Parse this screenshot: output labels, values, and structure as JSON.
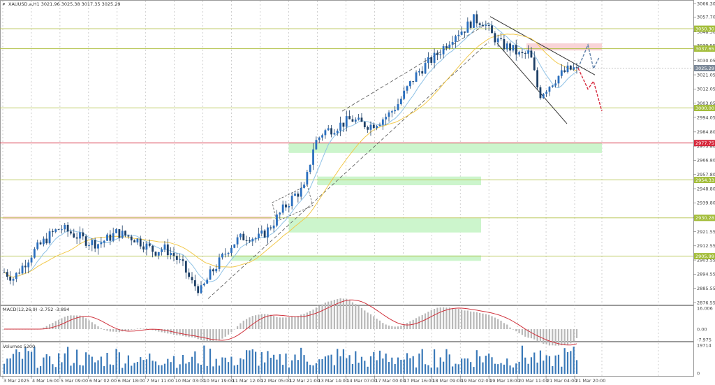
{
  "header": {
    "symbol_line": "XAUUSD.a,H1  3021.96 3025.38 3017.35 3025.29"
  },
  "colors": {
    "bull_candle": "#2a6fbf",
    "bear_candle": "#1d3f66",
    "level_line": "#b3c24a",
    "level_badge": "#a3bd3a",
    "red_level": "#d6273b",
    "support_zone": "#ccf5cc",
    "resistance_zone": "#f9d4d7",
    "ma_fast": "#8fc2e6",
    "ma_slow": "#f2c94c",
    "macd_signal": "#d0323c",
    "macd_hist": "#b8b8b8",
    "volume": "#3a79b8",
    "proj_up": "#5c7fa8",
    "proj_down": "#d6273b",
    "grid": "#b0b0b0"
  },
  "indicators": {
    "macd": {
      "label": "MACD(12,26,9) -2.752 -3.894",
      "ticks": [
        "16.006",
        "0.00",
        "-7.975"
      ]
    },
    "volume": {
      "label": "Volumes 5200",
      "ticks": [
        "19714",
        "0"
      ]
    }
  },
  "chart_data": {
    "type": "candlestick",
    "symbol": "XAUUSD.a",
    "timeframe": "H1",
    "y_range": [
      2876.55,
      3066.3
    ],
    "y_ticks": [
      "3066.30",
      "3057.70",
      "3048.30",
      "3039.55",
      "3030.05",
      "3021.05",
      "3012.05",
      "3003.05",
      "2994.05",
      "2984.80",
      "2975.80",
      "2966.80",
      "2957.80",
      "2948.80",
      "2939.80",
      "2930.55",
      "2921.55",
      "2912.55",
      "2903.55",
      "2894.55",
      "2885.55",
      "2876.55"
    ],
    "x_labels": [
      "3 Mar 2025",
      "4 Mar 16:00",
      "5 Mar 09:00",
      "6 Mar 02:00",
      "6 Mar 18:00",
      "7 Mar 11:00",
      "10 Mar 03:00",
      "10 Mar 19:00",
      "11 Mar 12:00",
      "12 Mar 05:00",
      "12 Mar 21:00",
      "13 Mar 14:00",
      "14 Mar 07:00",
      "17 Mar 00:00",
      "17 Mar 16:00",
      "18 Mar 09:00",
      "19 Mar 02:00",
      "19 Mar 18:00",
      "20 Mar 11:00",
      "21 Mar 04:00",
      "21 Mar 20:00"
    ],
    "last_price": "3025.29",
    "levels": [
      {
        "price": 3050.3,
        "label": "3050.30"
      },
      {
        "price": 3037.65,
        "label": "3037.65"
      },
      {
        "price": 3000.0,
        "label": "3000.00"
      },
      {
        "price": 2977.75,
        "label": "2977.75",
        "red": true
      },
      {
        "price": 2954.33,
        "label": "2954.33"
      },
      {
        "price": 2930.28,
        "label": "2930.28"
      },
      {
        "price": 2905.99,
        "label": "2905.99"
      }
    ],
    "support_zones": [
      {
        "from": 2971.5,
        "to": 2978.0,
        "x_start": "12 Mar 21:00"
      },
      {
        "from": 2951.0,
        "to": 2956.5,
        "x_start": "13 Mar 14:00"
      },
      {
        "from": 2921.0,
        "to": 2930.0,
        "x_start": "12 Mar 21:00"
      },
      {
        "from": 2903.0,
        "to": 2906.5,
        "x_start": "11 Mar 12:00"
      }
    ],
    "resistance_zones": [
      {
        "from": 3036.5,
        "to": 3041.0,
        "x_start": "20 Mar 11:00"
      }
    ],
    "path": [
      2896,
      2892,
      2900,
      2908,
      2914,
      2920,
      2924,
      2921,
      2918,
      2915,
      2914,
      2917,
      2921,
      2919,
      2917,
      2913,
      2909,
      2911,
      2907,
      2900,
      2889,
      2884,
      2895,
      2903,
      2912,
      2917,
      2919,
      2917,
      2922,
      2930,
      2938,
      2945,
      2949,
      2977,
      2985,
      2987,
      2990,
      2993,
      2990,
      2989,
      2992,
      2996,
      3003,
      3013,
      3022,
      3028,
      3033,
      3040,
      3047,
      3050,
      3056,
      3055,
      3046,
      3040,
      3038,
      3033,
      3035,
      3008,
      3014,
      3020,
      3024,
      3025.3
    ]
  }
}
